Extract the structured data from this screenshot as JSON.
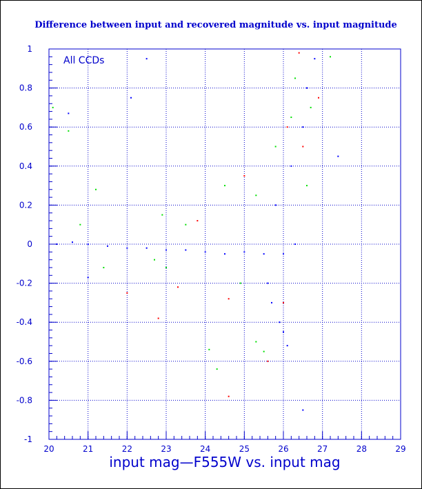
{
  "chart_data": {
    "type": "scatter",
    "title": "Difference between input and recovered magnitude vs. input magnitude",
    "xlabel": "input mag—F555W vs. input mag",
    "ylabel": "",
    "annotation": "All CCDs",
    "xlim": [
      20,
      29
    ],
    "ylim": [
      -1,
      1
    ],
    "x_ticks": [
      "20",
      "21",
      "22",
      "23",
      "24",
      "25",
      "26",
      "27",
      "28",
      "29"
    ],
    "y_ticks": [
      "-1",
      "-0.8",
      "-0.6",
      "-0.4",
      "-0.2",
      "0",
      "0.2",
      "0.4",
      "0.6",
      "0.8",
      "1"
    ],
    "grid": true,
    "series": [
      {
        "color": "#0000ff"
      },
      {
        "color": "#00e000"
      },
      {
        "color": "#ff0000"
      }
    ],
    "points": [
      [
        20.2,
        0.0,
        0
      ],
      [
        20.6,
        0.01,
        0
      ],
      [
        21.0,
        0.0,
        0
      ],
      [
        21.5,
        -0.01,
        0
      ],
      [
        22.0,
        -0.02,
        0
      ],
      [
        22.5,
        -0.02,
        0
      ],
      [
        23.0,
        -0.03,
        0
      ],
      [
        23.5,
        -0.03,
        0
      ],
      [
        24.0,
        -0.04,
        0
      ],
      [
        24.5,
        -0.05,
        0
      ],
      [
        25.0,
        -0.04,
        0
      ],
      [
        25.5,
        -0.05,
        0
      ],
      [
        26.0,
        -0.05,
        0
      ],
      [
        26.3,
        0.0,
        0
      ],
      [
        25.8,
        0.2,
        0
      ],
      [
        26.2,
        0.4,
        0
      ],
      [
        26.5,
        0.6,
        0
      ],
      [
        26.6,
        0.8,
        0
      ],
      [
        26.8,
        0.95,
        0
      ],
      [
        25.7,
        -0.3,
        0
      ],
      [
        25.9,
        -0.4,
        0
      ],
      [
        26.0,
        -0.45,
        0
      ],
      [
        25.6,
        -0.2,
        0
      ],
      [
        22.5,
        0.95,
        0
      ],
      [
        22.1,
        0.75,
        0
      ],
      [
        20.5,
        0.67,
        0
      ],
      [
        26.5,
        -0.85,
        0
      ],
      [
        21.0,
        -0.17,
        0
      ],
      [
        26.1,
        -0.52,
        0
      ],
      [
        27.4,
        0.45,
        0
      ],
      [
        21.2,
        0.28,
        1
      ],
      [
        22.9,
        0.15,
        1
      ],
      [
        23.5,
        0.1,
        1
      ],
      [
        24.5,
        0.3,
        1
      ],
      [
        25.3,
        0.25,
        1
      ],
      [
        25.8,
        0.5,
        1
      ],
      [
        26.3,
        0.85,
        1
      ],
      [
        26.7,
        0.7,
        1
      ],
      [
        27.2,
        0.96,
        1
      ],
      [
        20.1,
        0.7,
        1
      ],
      [
        20.5,
        0.58,
        1
      ],
      [
        21.4,
        -0.12,
        1
      ],
      [
        24.9,
        -0.2,
        1
      ],
      [
        25.3,
        -0.5,
        1
      ],
      [
        25.5,
        -0.55,
        1
      ],
      [
        24.1,
        -0.54,
        1
      ],
      [
        24.3,
        -0.64,
        1
      ],
      [
        26.6,
        0.3,
        1
      ],
      [
        23.0,
        -0.12,
        1
      ],
      [
        22.7,
        -0.08,
        1
      ],
      [
        20.8,
        0.1,
        1
      ],
      [
        26.2,
        0.65,
        1
      ],
      [
        22.0,
        -0.25,
        2
      ],
      [
        23.3,
        -0.22,
        2
      ],
      [
        24.6,
        -0.28,
        2
      ],
      [
        25.6,
        -0.6,
        2
      ],
      [
        26.0,
        -0.3,
        2
      ],
      [
        26.5,
        0.5,
        2
      ],
      [
        26.1,
        0.6,
        2
      ],
      [
        26.4,
        0.98,
        2
      ],
      [
        24.6,
        -0.78,
        2
      ],
      [
        22.8,
        -0.38,
        2
      ],
      [
        25.0,
        0.35,
        2
      ],
      [
        23.8,
        0.12,
        2
      ],
      [
        26.9,
        0.75,
        2
      ]
    ]
  }
}
